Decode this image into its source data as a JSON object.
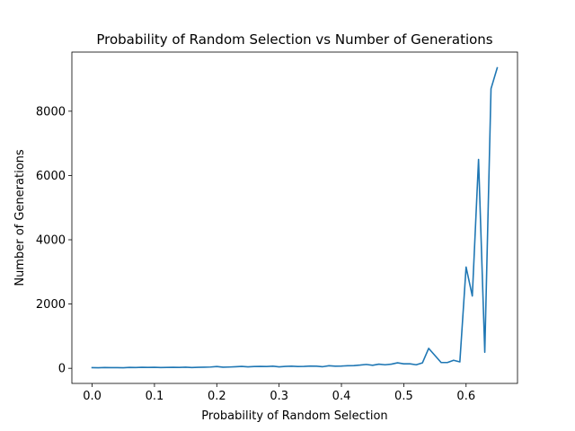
{
  "chart_data": {
    "type": "line",
    "title": "Probability of Random Selection vs Number of Generations",
    "xlabel": "Probability of Random Selection",
    "ylabel": "Number of Generations",
    "xlim": [
      -0.0325,
      0.6825
    ],
    "ylim": [
      -470,
      9840
    ],
    "xticks": [
      0.0,
      0.1,
      0.2,
      0.3,
      0.4,
      0.5,
      0.6
    ],
    "xtick_labels": [
      "0.0",
      "0.1",
      "0.2",
      "0.3",
      "0.4",
      "0.5",
      "0.6"
    ],
    "yticks": [
      0,
      2000,
      4000,
      6000,
      8000
    ],
    "ytick_labels": [
      "0",
      "2000",
      "4000",
      "6000",
      "8000"
    ],
    "grid": false,
    "line_color": "#1f77b4",
    "series": [
      {
        "x": [
          0.0,
          0.01,
          0.02,
          0.03,
          0.04,
          0.05,
          0.06,
          0.07,
          0.08,
          0.09,
          0.1,
          0.11,
          0.12,
          0.13,
          0.14,
          0.15,
          0.16,
          0.17,
          0.18,
          0.19,
          0.2,
          0.21,
          0.22,
          0.23,
          0.24,
          0.25,
          0.26,
          0.27,
          0.28,
          0.29,
          0.3,
          0.31,
          0.32,
          0.33,
          0.34,
          0.35,
          0.36,
          0.37,
          0.38,
          0.39,
          0.4,
          0.41,
          0.42,
          0.43,
          0.44,
          0.45,
          0.46,
          0.47,
          0.48,
          0.49,
          0.5,
          0.51,
          0.52,
          0.53,
          0.54,
          0.55,
          0.56,
          0.57,
          0.58,
          0.59,
          0.6,
          0.61,
          0.62,
          0.63,
          0.64,
          0.65
        ],
        "y": [
          20,
          18,
          25,
          22,
          20,
          18,
          28,
          25,
          30,
          28,
          32,
          25,
          28,
          30,
          28,
          35,
          25,
          30,
          35,
          40,
          55,
          35,
          40,
          50,
          60,
          45,
          55,
          60,
          55,
          65,
          45,
          60,
          65,
          55,
          60,
          70,
          65,
          50,
          80,
          65,
          70,
          80,
          85,
          100,
          120,
          95,
          130,
          110,
          130,
          170,
          140,
          140,
          110,
          170,
          620,
          400,
          180,
          180,
          250,
          200,
          3150,
          2250,
          6500,
          500,
          8700,
          9350
        ]
      }
    ]
  }
}
